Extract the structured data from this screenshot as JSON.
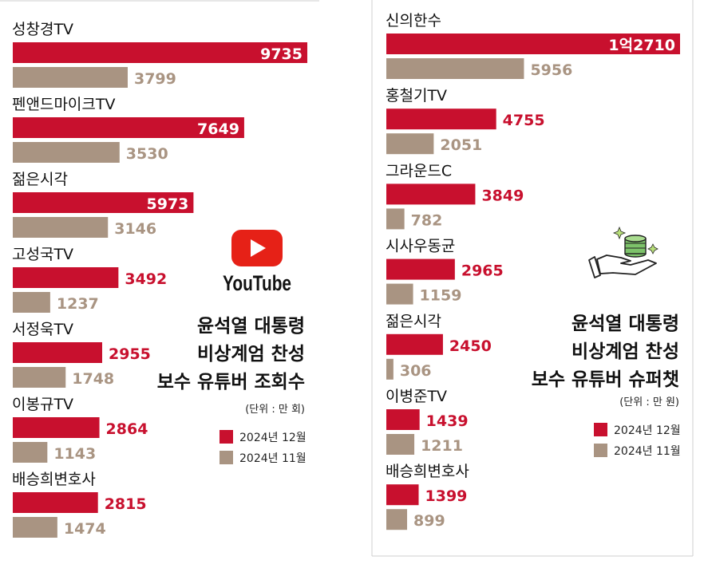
{
  "colors": {
    "dec2024": "#c8102e",
    "nov2024": "#a99482",
    "title": "#111111",
    "youtube": "#e62117"
  },
  "left_panel": {
    "title_lines": [
      "윤석열 대통령",
      "비상계엄 찬성",
      "보수 유튜버 조회수"
    ],
    "unit": "(단위 : 만 회)",
    "logo_text": "YouTube",
    "legend": [
      "2024년 12월",
      "2024년 11월"
    ]
  },
  "right_panel": {
    "title_lines": [
      "윤석열 대통령",
      "비상계엄 찬성",
      "보수 유튜버 슈퍼챗"
    ],
    "unit": "(단위 : 만 원)",
    "legend": [
      "2024년 12월",
      "2024년 11월"
    ]
  },
  "chart_data": [
    {
      "type": "bar",
      "orientation": "horizontal",
      "categories": [
        "성창경TV",
        "펜앤드마이크TV",
        "젊은시각",
        "고성국TV",
        "서정욱TV",
        "이봉규TV",
        "배승희변호사"
      ],
      "series": [
        {
          "name": "2024년 12월",
          "values": [
            9735,
            7649,
            5973,
            3492,
            2955,
            2864,
            2815
          ],
          "labels": [
            "9735",
            "7649",
            "5973",
            "3492",
            "2955",
            "2864",
            "2815"
          ]
        },
        {
          "name": "2024년 11월",
          "values": [
            3799,
            3530,
            3146,
            1237,
            1748,
            1143,
            1474
          ],
          "labels": [
            "3799",
            "3530",
            "3146",
            "1237",
            "1748",
            "1143",
            "1474"
          ]
        }
      ],
      "title": "윤석열 대통령 비상계엄 찬성 보수 유튜버 조회수",
      "unit": "(단위 : 만 회)",
      "legend_position": "right"
    },
    {
      "type": "bar",
      "orientation": "horizontal",
      "categories": [
        "신의한수",
        "홍철기TV",
        "그라운드C",
        "시사우동균",
        "젊은시각",
        "이병준TV",
        "배승희변호사"
      ],
      "series": [
        {
          "name": "2024년 12월",
          "values": [
            12710,
            4755,
            3849,
            2965,
            2450,
            1439,
            1399
          ],
          "labels": [
            "1억2710",
            "4755",
            "3849",
            "2965",
            "2450",
            "1439",
            "1399"
          ]
        },
        {
          "name": "2024년 11월",
          "values": [
            5956,
            2051,
            782,
            1159,
            306,
            1211,
            899
          ],
          "labels": [
            "5956",
            "2051",
            "782",
            "1159",
            "306",
            "1211",
            "899"
          ]
        }
      ],
      "title": "윤석열 대통령 비상계엄 찬성 보수 유튜버 슈퍼챗",
      "unit": "(단위 : 만 원)",
      "legend_position": "right"
    }
  ]
}
